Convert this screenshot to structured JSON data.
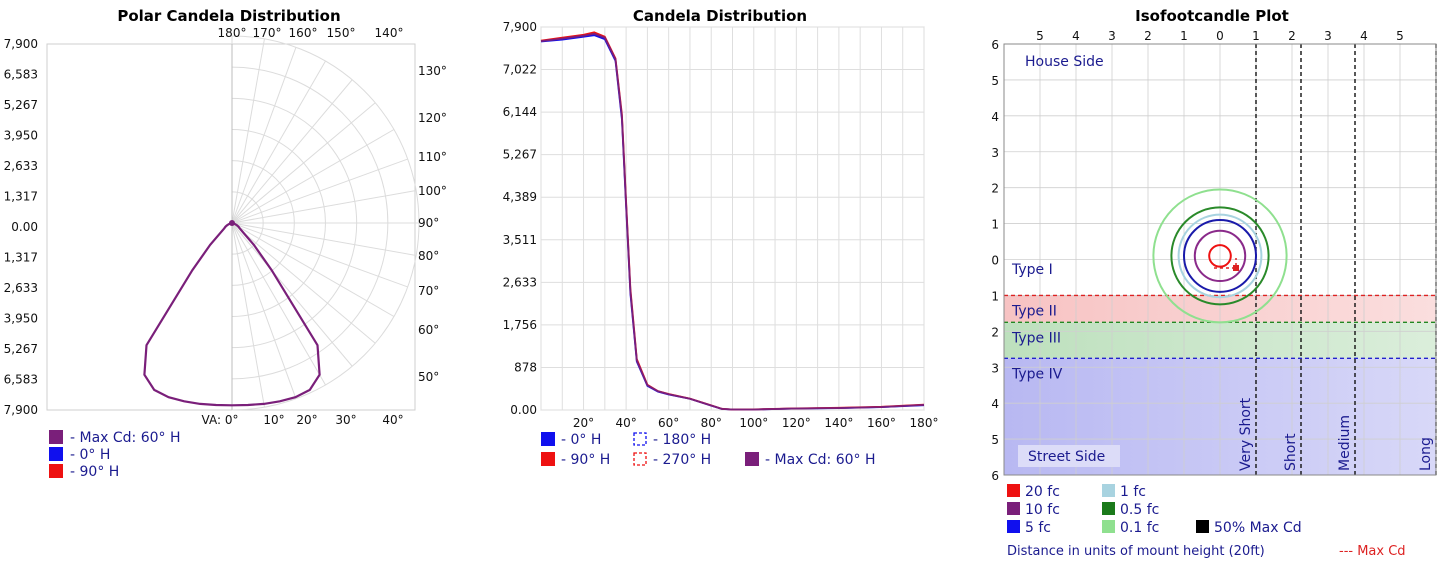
{
  "chart_data": [
    {
      "type": "polar",
      "title": "Polar Candela Distribution",
      "radial_ticks": [
        "7,900",
        "6,583",
        "5,267",
        "3,950",
        "2,633",
        "1,317",
        "0.00",
        "1,317",
        "2,633",
        "3,950",
        "5,267",
        "6,583",
        "7,900"
      ],
      "r_max": 7900,
      "angle_labels_top": [
        "180°",
        "170°",
        "160°",
        "150°",
        "140°"
      ],
      "angle_labels_right": [
        "130°",
        "120°",
        "110°",
        "100°",
        "90°",
        "80°",
        "70°",
        "60°",
        "50°"
      ],
      "angle_labels_bottom": [
        "VA: 0°",
        "10°",
        "20°",
        "30°",
        "40°"
      ],
      "curve": {
        "angles_deg": [
          0,
          5,
          10,
          15,
          20,
          25,
          30,
          35,
          40,
          45,
          50,
          55,
          60,
          65,
          70,
          75,
          80,
          85,
          90
        ],
        "candela": [
          7700,
          7720,
          7760,
          7800,
          7830,
          7780,
          7400,
          6300,
          2600,
          1300,
          600,
          400,
          320,
          240,
          150,
          80,
          40,
          20,
          0
        ]
      },
      "legend": [
        {
          "label": "- Max Cd: 60° H",
          "color": "#7a1f7a"
        },
        {
          "label": "- 0° H",
          "color": "#1010ee"
        },
        {
          "label": "- 90° H",
          "color": "#ee1111"
        }
      ]
    },
    {
      "type": "line",
      "title": "Candela Distribution",
      "y_ticks": [
        "7,900",
        "7,022",
        "6,144",
        "5,267",
        "4,389",
        "3,511",
        "2,633",
        "1,756",
        "878",
        "0.00"
      ],
      "ylim": [
        0,
        7900
      ],
      "x_ticks": [
        "20°",
        "40°",
        "60°",
        "80°",
        "100°",
        "120°",
        "140°",
        "160°",
        "180°"
      ],
      "xlim": [
        0,
        180
      ],
      "series": [
        {
          "name": "- 0° H",
          "color": "#1010ee",
          "x": [
            0,
            10,
            20,
            25,
            30,
            35,
            38,
            40,
            42,
            45,
            50,
            55,
            60,
            70,
            80,
            85,
            90,
            100,
            120,
            140,
            160,
            180
          ],
          "y": [
            7600,
            7640,
            7700,
            7730,
            7650,
            7200,
            6000,
            4200,
            2400,
            1000,
            500,
            380,
            320,
            230,
            90,
            20,
            10,
            10,
            30,
            40,
            60,
            100
          ]
        },
        {
          "name": "- 90° H",
          "color": "#ee1111",
          "x": [
            0,
            10,
            20,
            25,
            30,
            35,
            38,
            40,
            42,
            45,
            50,
            55,
            60,
            70,
            80,
            85,
            90,
            100,
            120,
            140,
            160,
            180
          ],
          "y": [
            7620,
            7680,
            7740,
            7790,
            7700,
            7250,
            6100,
            4300,
            2500,
            1050,
            520,
            390,
            330,
            235,
            95,
            25,
            10,
            12,
            32,
            45,
            65,
            110
          ]
        },
        {
          "name": "- Max Cd: 60° H",
          "color": "#7a1f7a",
          "x": [
            0,
            10,
            20,
            25,
            30,
            35,
            38,
            40,
            42,
            45,
            50,
            55,
            60,
            70,
            80,
            85,
            90,
            100,
            120,
            140,
            160,
            180
          ],
          "y": [
            7610,
            7660,
            7720,
            7760,
            7680,
            7230,
            6050,
            4250,
            2450,
            1020,
            510,
            385,
            325,
            232,
            92,
            22,
            10,
            11,
            31,
            42,
            62,
            105
          ]
        }
      ],
      "legend": [
        {
          "label": "- 0° H",
          "color": "#1010ee",
          "style": "solid"
        },
        {
          "label": "- 180° H",
          "color": "#1010ee",
          "style": "dashed"
        },
        {
          "label": "- 90° H",
          "color": "#ee1111",
          "style": "solid"
        },
        {
          "label": "- 270° H",
          "color": "#ee1111",
          "style": "dashed"
        },
        {
          "label": "- Max Cd: 60° H",
          "color": "#7a1f7a",
          "style": "solid"
        }
      ]
    },
    {
      "type": "isofootcandle",
      "title": "Isofootcandle Plot",
      "x_ticks": [
        "5",
        "4",
        "3",
        "2",
        "1",
        "0",
        "1",
        "2",
        "3",
        "4",
        "5"
      ],
      "y_ticks": [
        "6",
        "5",
        "4",
        "3",
        "2",
        "1",
        "0",
        "1",
        "2",
        "3",
        "4",
        "5",
        "6"
      ],
      "x_range": [
        -6,
        6
      ],
      "y_range": [
        -6,
        6
      ],
      "house_side": "House Side",
      "street_side": "Street Side",
      "zones": [
        {
          "label": "Type I",
          "from": 0,
          "to": 1,
          "color": "#ffffff"
        },
        {
          "label": "Type II",
          "from": 1,
          "to": 1.75,
          "color": "#f7c3c3"
        },
        {
          "label": "Type III",
          "from": 1.75,
          "to": 2.75,
          "color": "#bde0bd"
        },
        {
          "label": "Type IV",
          "from": 2.75,
          "to": 6,
          "color": "#b8b8f2"
        }
      ],
      "zone_boundaries": [
        {
          "y": 1,
          "color": "#dd2222"
        },
        {
          "y": 1.75,
          "color": "#228822"
        },
        {
          "y": 2.75,
          "color": "#2222cc"
        }
      ],
      "distance_lines": [
        {
          "label": "Very Short",
          "x": 1
        },
        {
          "label": "Short",
          "x": 2.25
        },
        {
          "label": "Medium",
          "x": 3.75
        },
        {
          "label": "Long",
          "x": 6
        }
      ],
      "contours": [
        {
          "label": "0.1 fc",
          "color": "#8fe08f",
          "r": 1.85
        },
        {
          "label": "0.5 fc",
          "color": "#2a8a2a",
          "r": 1.35
        },
        {
          "label": "1 fc",
          "color": "#a8d3e0",
          "r": 1.15
        },
        {
          "label": "5 fc",
          "color": "#1a1aaa",
          "r": 1.0
        },
        {
          "label": "10 fc",
          "color": "#8a2a8a",
          "r": 0.7
        },
        {
          "label": "20 fc",
          "color": "#ee1111",
          "r": 0.3
        }
      ],
      "contour_center": [
        0,
        -0.1
      ],
      "legend": [
        {
          "label": "20 fc",
          "color": "#ee1111"
        },
        {
          "label": "1 fc",
          "color": "#a8d3e0"
        },
        {
          "label": "10 fc",
          "color": "#7a1f7a"
        },
        {
          "label": "0.5 fc",
          "color": "#1a7a1a"
        },
        {
          "label": "5 fc",
          "color": "#1010ee"
        },
        {
          "label": "0.1 fc",
          "color": "#8fe08f"
        },
        {
          "label": "50% Max Cd",
          "color": "#000000"
        }
      ],
      "footer": "Distance in units of mount height (20ft)",
      "max_cd_label": "--- Max Cd"
    }
  ]
}
